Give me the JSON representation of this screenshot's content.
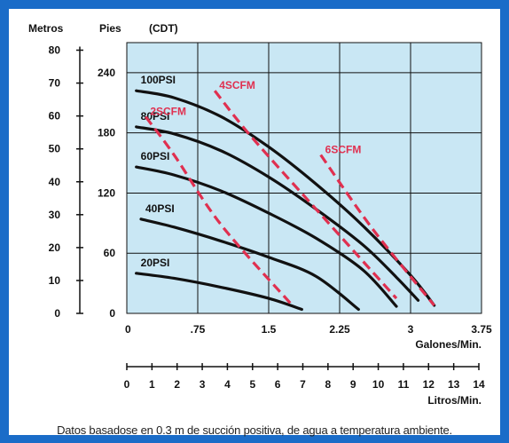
{
  "chart_data": {
    "type": "line",
    "axis_headers": {
      "metros": "Metros",
      "pies": "Pies",
      "cdt": "(CDT)"
    },
    "xlabel": "Galones/Min.",
    "xlabel2": "Litros/Min.",
    "xlim": [
      0,
      3.75
    ],
    "ylim_ft": [
      0,
      270
    ],
    "x_ticks": [
      {
        "value": 0,
        "label": "0"
      },
      {
        "value": 0.75,
        "label": ".75"
      },
      {
        "value": 1.5,
        "label": "1.5"
      },
      {
        "value": 2.25,
        "label": "2.25"
      },
      {
        "value": 3,
        "label": "3"
      },
      {
        "value": 3.75,
        "label": "3.75"
      }
    ],
    "liters_ticks": [
      "0",
      "1",
      "2",
      "3",
      "4",
      "5",
      "6",
      "7",
      "8",
      "9",
      "10",
      "11",
      "12",
      "13",
      "14"
    ],
    "ft_ticks": [
      {
        "value": 0,
        "label": "0"
      },
      {
        "value": 60,
        "label": "60"
      },
      {
        "value": 120,
        "label": "120"
      },
      {
        "value": 180,
        "label": "180"
      },
      {
        "value": 240,
        "label": "240"
      }
    ],
    "m_ticks": [
      {
        "value": 0,
        "label": "0"
      },
      {
        "value": 10,
        "label": "10"
      },
      {
        "value": 20,
        "label": "20"
      },
      {
        "value": 30,
        "label": "30"
      },
      {
        "value": 40,
        "label": "40"
      },
      {
        "value": 50,
        "label": "50"
      },
      {
        "value": 60,
        "label": "60"
      },
      {
        "value": 70,
        "label": "70"
      },
      {
        "value": 80,
        "label": "80"
      }
    ],
    "grid": true,
    "series": [
      {
        "name": "100PSI",
        "kind": "psi",
        "x": [
          0.1,
          0.5,
          1.0,
          1.5,
          2.0,
          2.5,
          3.0,
          3.25
        ],
        "y": [
          222,
          215,
          196,
          166,
          129,
          87,
          38,
          8
        ]
      },
      {
        "name": "80PSI",
        "kind": "psi",
        "x": [
          0.1,
          0.5,
          1.0,
          1.5,
          2.0,
          2.5,
          2.85,
          3.08
        ],
        "y": [
          186,
          179,
          162,
          136,
          104,
          68,
          36,
          13
        ]
      },
      {
        "name": "60PSI",
        "kind": "psi",
        "x": [
          0.1,
          0.5,
          1.0,
          1.5,
          2.0,
          2.5,
          2.85
        ],
        "y": [
          146,
          138,
          122,
          100,
          75,
          43,
          7
        ]
      },
      {
        "name": "40PSI",
        "kind": "psi",
        "x": [
          0.15,
          0.5,
          1.0,
          1.5,
          2.0,
          2.45
        ],
        "y": [
          94,
          86,
          72,
          56,
          37,
          4
        ]
      },
      {
        "name": "20PSI",
        "kind": "psi",
        "x": [
          0.1,
          0.5,
          1.0,
          1.5,
          1.85
        ],
        "y": [
          40,
          35,
          26,
          15,
          4
        ]
      },
      {
        "name": "2SCFM",
        "kind": "scfm",
        "x": [
          0.2,
          0.5,
          1.0,
          1.75
        ],
        "y": [
          196,
          158,
          88,
          8
        ]
      },
      {
        "name": "4SCFM",
        "kind": "scfm",
        "x": [
          0.93,
          1.3,
          2.0,
          2.85
        ],
        "y": [
          222,
          178,
          104,
          15
        ]
      },
      {
        "name": "6SCFM",
        "kind": "scfm",
        "x": [
          2.05,
          2.6,
          3.25
        ],
        "y": [
          158,
          84,
          8
        ]
      }
    ],
    "colors": {
      "psi": "#111111",
      "scfm": "#e03050",
      "plot_bg": "#c9e7f4",
      "frame": "#1a6cc8"
    }
  },
  "footnote": "Datos basadose en 0.3 m de succión positiva, de agua a temperatura ambiente."
}
